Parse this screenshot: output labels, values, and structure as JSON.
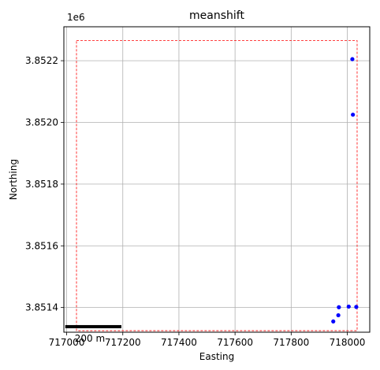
{
  "chart_data": {
    "type": "scatter",
    "title": "meanshift",
    "xlabel": "Easting",
    "ylabel": "Northing",
    "y_offset_label": "1e6",
    "xlim": [
      716990,
      718080
    ],
    "ylim": [
      3851320,
      3852310
    ],
    "x_ticks": [
      717000,
      717200,
      717400,
      717600,
      717800,
      718000
    ],
    "y_ticks": [
      3851400,
      3851600,
      3851800,
      3852000,
      3852200
    ],
    "y_tick_labels": [
      "3.8514",
      "3.8516",
      "3.8518",
      "3.8520",
      "3.8522"
    ],
    "grid": true,
    "series": [
      {
        "color": "#0000ff",
        "points": [
          {
            "x": 718018,
            "y": 3852205
          },
          {
            "x": 718020,
            "y": 3852025
          },
          {
            "x": 717970,
            "y": 3851401
          },
          {
            "x": 718005,
            "y": 3851403
          },
          {
            "x": 718032,
            "y": 3851402
          },
          {
            "x": 717968,
            "y": 3851375
          },
          {
            "x": 717950,
            "y": 3851355
          }
        ]
      }
    ],
    "bounding_box": {
      "x0": 717035,
      "x1": 718035,
      "y0": 3851325,
      "y1": 3852265,
      "color": "#ff0000",
      "style": "dashed"
    },
    "scale_bar": {
      "label": "200 m",
      "length": 200,
      "x_start": 716995,
      "y": 3851338
    }
  }
}
